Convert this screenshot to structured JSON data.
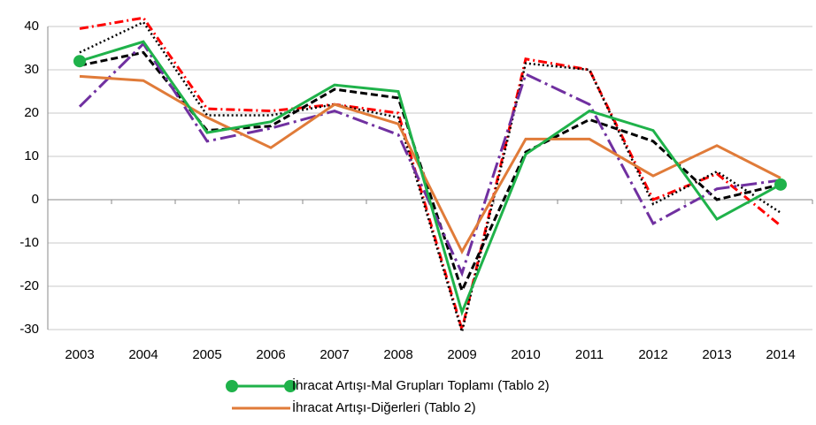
{
  "chart_data": {
    "type": "line",
    "categories": [
      "2003",
      "2004",
      "2005",
      "2006",
      "2007",
      "2008",
      "2009",
      "2010",
      "2011",
      "2012",
      "2013",
      "2014"
    ],
    "ylim": [
      -30,
      40
    ],
    "yticks": [
      -30,
      -20,
      -10,
      0,
      10,
      20,
      30,
      40
    ],
    "grid": true,
    "legend": "bottom",
    "series": [
      {
        "color": "#ff0000",
        "dash": "dash-dot",
        "values": [
          39.5,
          42,
          21,
          20.5,
          22,
          20,
          -30,
          32.5,
          30,
          0,
          6,
          -6
        ]
      },
      {
        "color": "#000000",
        "dash": "dot",
        "values": [
          34,
          41,
          19.5,
          19.5,
          22,
          19,
          -30.5,
          31.5,
          30,
          -1,
          6.5,
          -3
        ]
      },
      {
        "color": "#000000",
        "dash": "dash",
        "values": [
          31,
          34,
          16,
          17,
          25.5,
          23.5,
          -21,
          11,
          18.5,
          13.5,
          0,
          3.5
        ]
      },
      {
        "color": "#7030a0",
        "dash": "long-dash-dot",
        "values": [
          21.5,
          36,
          13.5,
          16.5,
          20.5,
          15,
          -17,
          29,
          22,
          -5.5,
          2.5,
          4.5
        ]
      },
      {
        "name": "İhracat Artışı-Diğerleri (Tablo 2)",
        "color": "#e07b39",
        "dash": "solid",
        "values": [
          28.5,
          27.5,
          19,
          12,
          22,
          17.5,
          -12,
          14,
          14,
          5.5,
          12.5,
          5
        ]
      },
      {
        "name": "İhracat Artışı-Mal Grupları Toplamı (Tablo 2)",
        "color": "#1fb24a",
        "dash": "solid",
        "marker": "circle-ends",
        "values": [
          32,
          36.5,
          15.5,
          18,
          26.5,
          25,
          -26,
          10.5,
          20.5,
          16,
          -4.5,
          3.5
        ]
      }
    ]
  }
}
